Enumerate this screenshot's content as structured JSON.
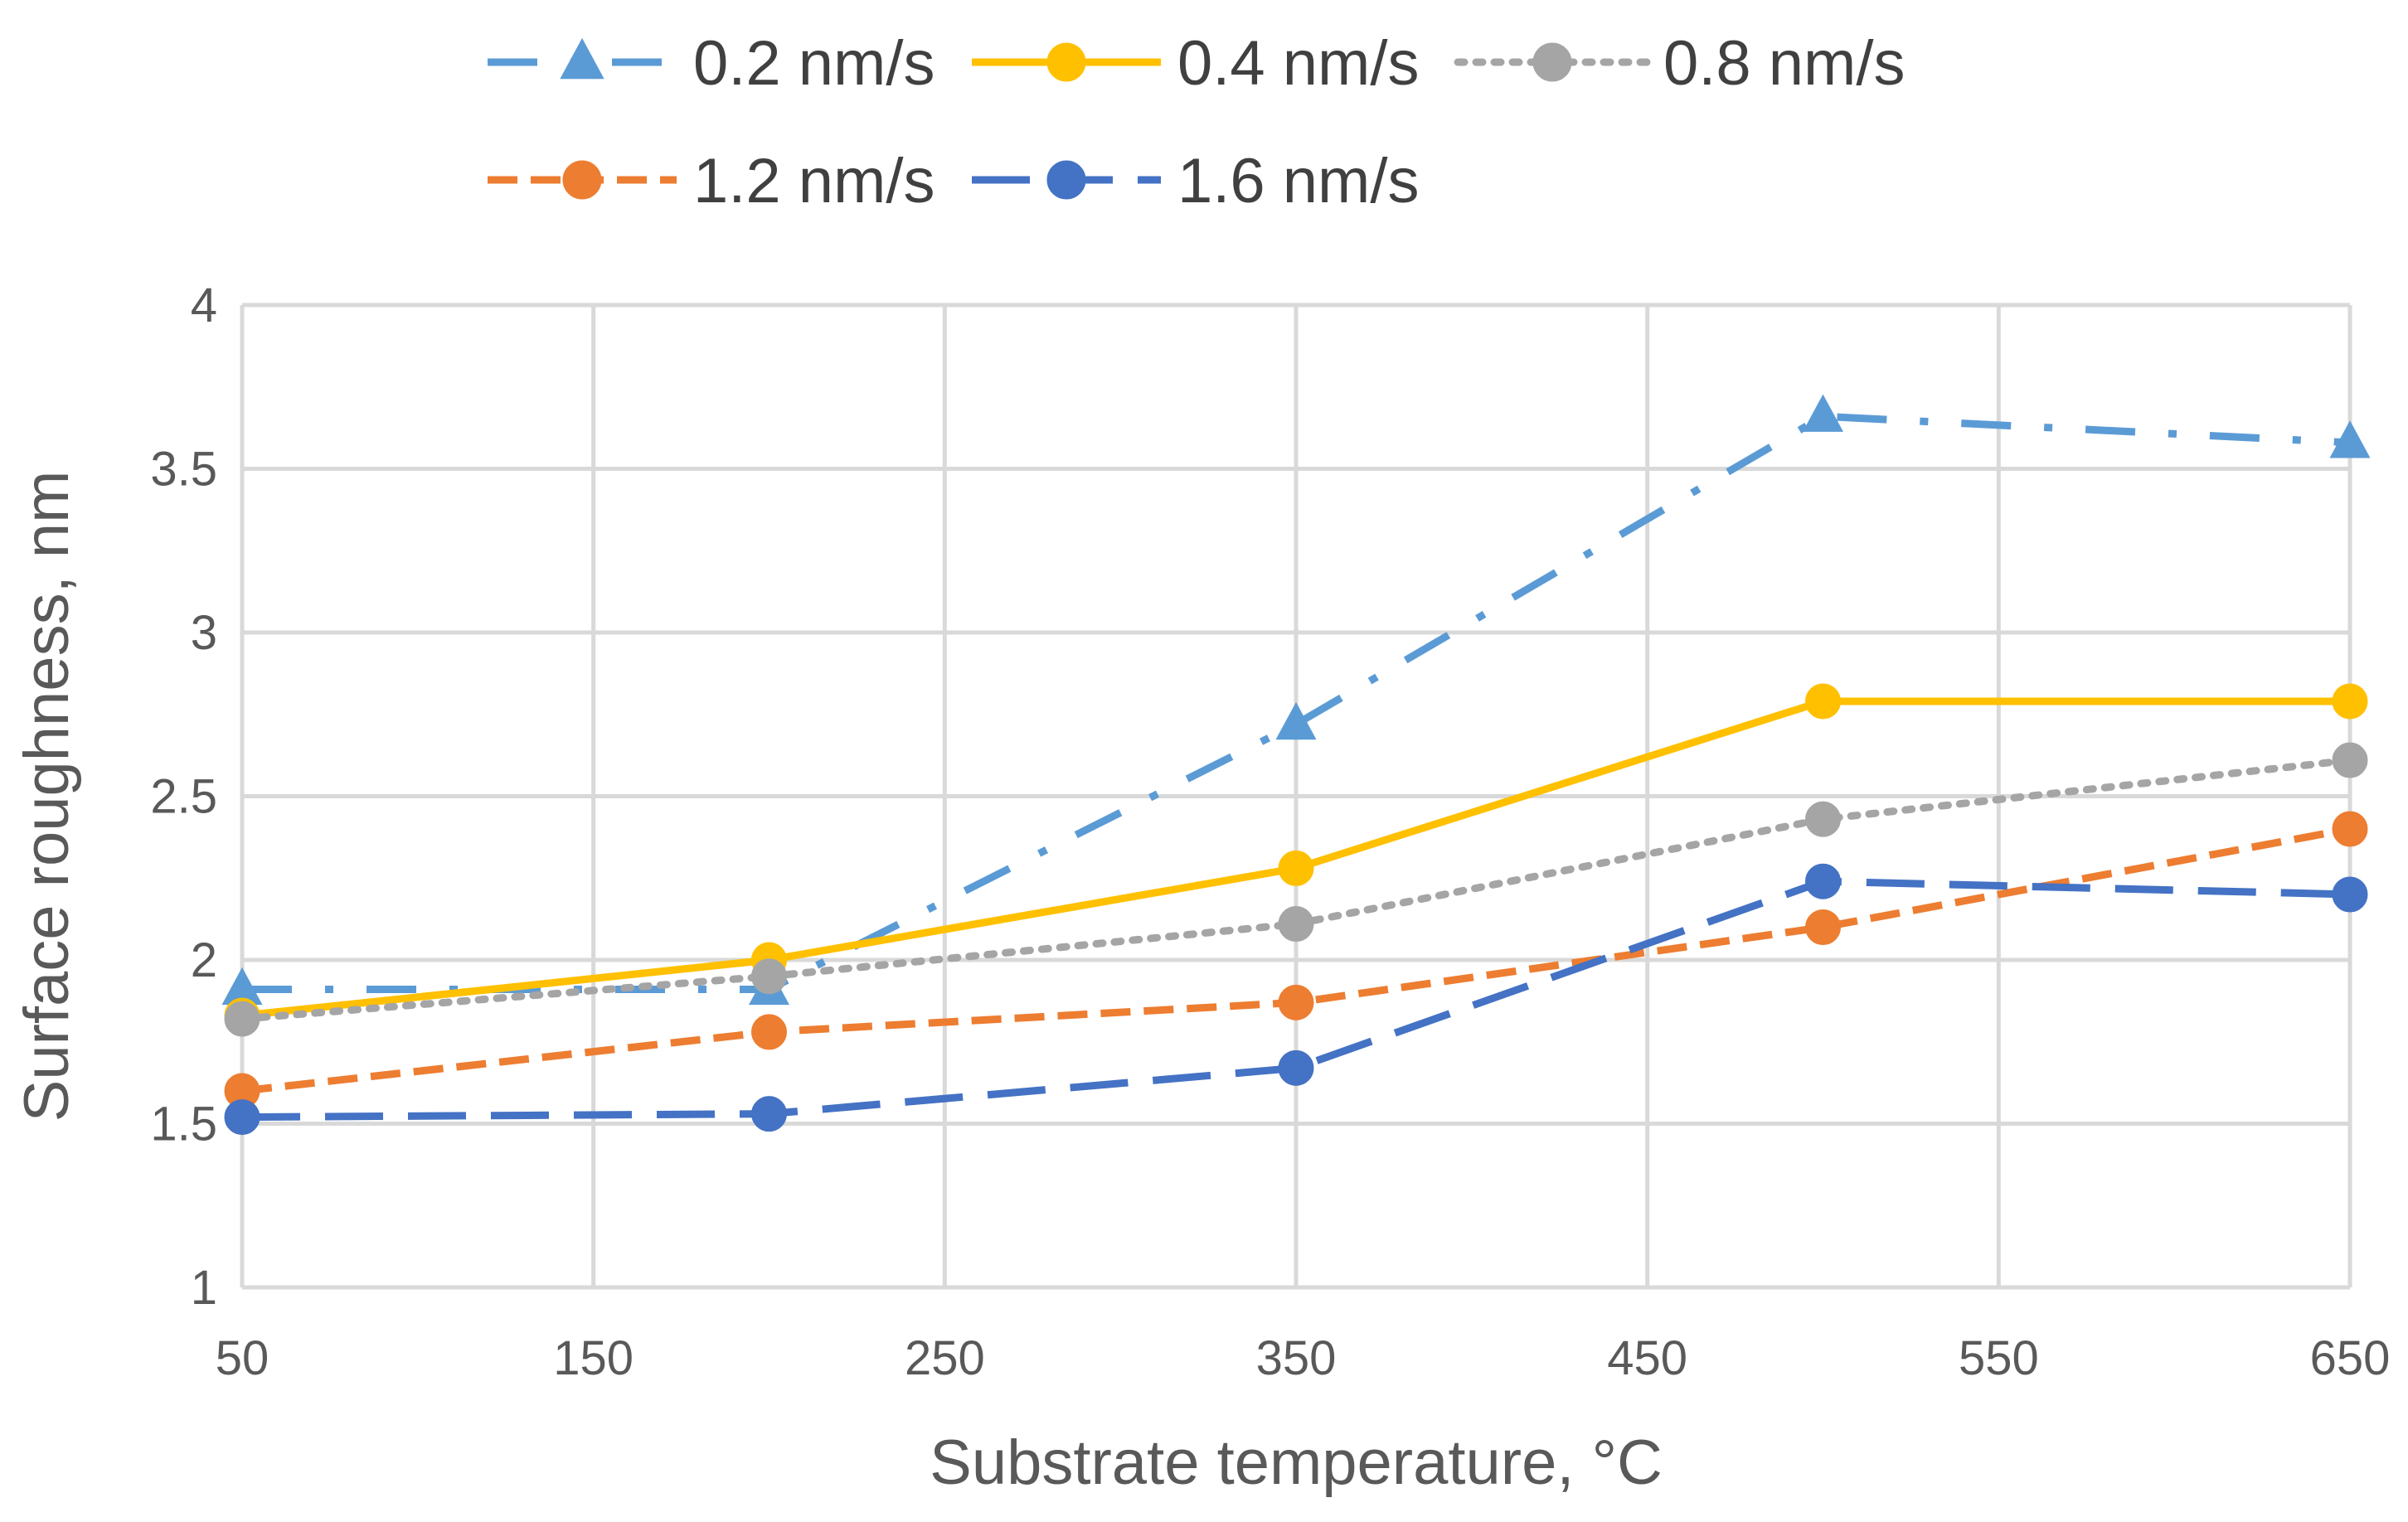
{
  "chart_data": {
    "type": "line",
    "title": "",
    "xlabel": "Substrate temperature, °C",
    "ylabel": "Surface roughness, nm",
    "xlim": [
      50,
      650
    ],
    "ylim": [
      1,
      4
    ],
    "x_ticks": [
      50,
      150,
      250,
      350,
      450,
      550,
      650
    ],
    "x_tick_labels": [
      "50",
      "150",
      "250",
      "350",
      "450",
      "550",
      "650"
    ],
    "y_ticks": [
      1,
      1.5,
      2,
      2.5,
      3,
      3.5,
      4
    ],
    "y_tick_labels": [
      "1",
      "1.5",
      "2",
      "2.5",
      "3",
      "3.5",
      "4"
    ],
    "grid": true,
    "legend_position": "top",
    "x": [
      50,
      200,
      350,
      500,
      650
    ],
    "series": [
      {
        "name": "0.2 nm/s",
        "values": [
          1.91,
          1.91,
          2.72,
          3.66,
          3.58
        ],
        "color": "#5B9BD5",
        "marker": "triangle",
        "line_style": "dash-dot"
      },
      {
        "name": "0.4 nm/s",
        "values": [
          1.83,
          2.0,
          2.28,
          2.79,
          2.79
        ],
        "color": "#FFC000",
        "marker": "circle",
        "line_style": "solid"
      },
      {
        "name": "0.8 nm/s",
        "values": [
          1.82,
          1.95,
          2.11,
          2.43,
          2.61
        ],
        "color": "#A5A5A5",
        "marker": "circle",
        "line_style": "dotted"
      },
      {
        "name": "1.2 nm/s",
        "values": [
          1.6,
          1.78,
          1.87,
          2.1,
          2.4
        ],
        "color": "#ED7D31",
        "marker": "circle",
        "line_style": "dashed"
      },
      {
        "name": "1.6 nm/s",
        "values": [
          1.52,
          1.53,
          1.67,
          2.24,
          2.2
        ],
        "color": "#4472C4",
        "marker": "circle",
        "line_style": "long-dash"
      }
    ]
  }
}
